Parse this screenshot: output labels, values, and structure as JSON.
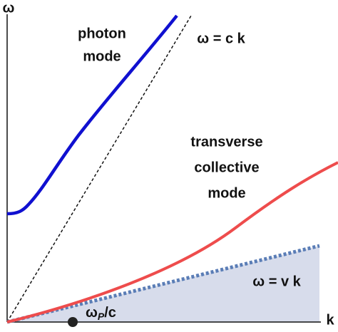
{
  "axes": {
    "y_label": "ω",
    "x_label": "k"
  },
  "labels": {
    "photon_mode": [
      "photon",
      "mode"
    ],
    "light_line": "ω = c k",
    "transverse_mode": [
      "transverse",
      "collective",
      "mode"
    ],
    "sound_line": "ω = v k",
    "plasma_point": {
      "symbol": "ω",
      "subscript": "P",
      "suffix": "/c"
    }
  }
}
